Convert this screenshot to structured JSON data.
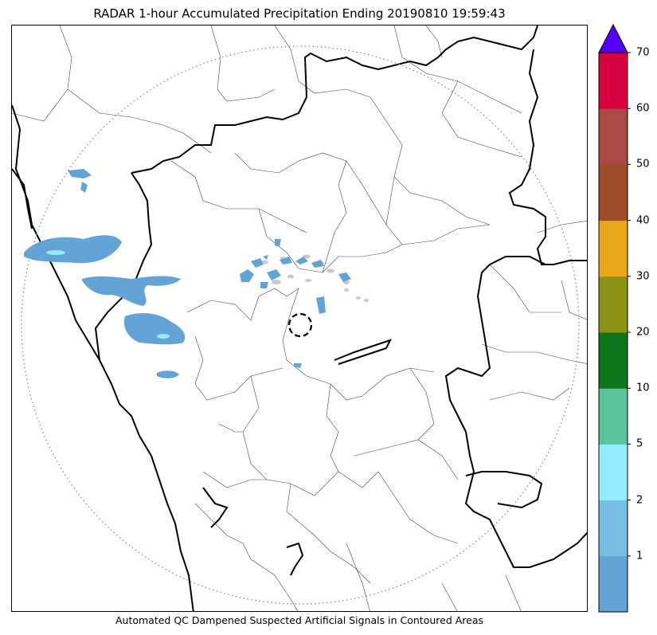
{
  "title": "RADAR 1-hour Accumulated Precipitation Ending 20190810 19:59:43",
  "caption": "Automated QC Dampened Suspected Artificial Signals in Contoured Areas",
  "colorbar": {
    "extend_color": "#5500ff",
    "bins": [
      {
        "color": "#64a3d5"
      },
      {
        "color": "#78bde2"
      },
      {
        "color": "#95ecfe"
      },
      {
        "color": "#5dc39b"
      },
      {
        "color": "#0e7419"
      },
      {
        "color": "#8a9316"
      },
      {
        "color": "#e8a81b"
      },
      {
        "color": "#9b4e27"
      },
      {
        "color": "#a84b46"
      },
      {
        "color": "#d6003f"
      }
    ],
    "tick_labels": [
      "1",
      "2",
      "5",
      "10",
      "20",
      "30",
      "40",
      "50",
      "60",
      "70"
    ]
  },
  "map": {
    "radar_range_ring": "dotted",
    "radar_site_marker": "dashed-circle",
    "rain_color_light": "#64a3d5",
    "rain_color_moderate": "#95ecfe",
    "suspect_signal_color": "#c9c9c9"
  }
}
